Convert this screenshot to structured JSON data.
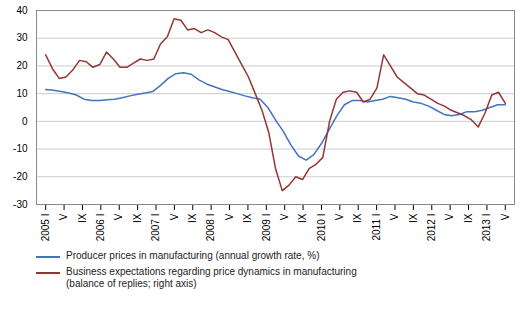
{
  "chart_data": {
    "type": "line",
    "xlim": [
      -0.5,
      25.5
    ],
    "xticks": [
      {
        "value": 0,
        "label": "2005 I"
      },
      {
        "value": 1,
        "label": "V"
      },
      {
        "value": 2,
        "label": "IX"
      },
      {
        "value": 3,
        "label": "2006 I"
      },
      {
        "value": 4,
        "label": "V"
      },
      {
        "value": 5,
        "label": "IX"
      },
      {
        "value": 6,
        "label": "2007 I"
      },
      {
        "value": 7,
        "label": "V"
      },
      {
        "value": 8,
        "label": "IX"
      },
      {
        "value": 9,
        "label": "2008 I"
      },
      {
        "value": 10,
        "label": "V"
      },
      {
        "value": 11,
        "label": "IX"
      },
      {
        "value": 12,
        "label": "2009 I"
      },
      {
        "value": 13,
        "label": "V"
      },
      {
        "value": 14,
        "label": "IX"
      },
      {
        "value": 15,
        "label": "2010 I"
      },
      {
        "value": 16,
        "label": "V"
      },
      {
        "value": 17,
        "label": "IX"
      },
      {
        "value": 18,
        "label": "2011 I"
      },
      {
        "value": 19,
        "label": "V"
      },
      {
        "value": 20,
        "label": "IX"
      },
      {
        "value": 21,
        "label": "2012 I"
      },
      {
        "value": 22,
        "label": "V"
      },
      {
        "value": 23,
        "label": "IX"
      },
      {
        "value": 24,
        "label": "2013 I"
      },
      {
        "value": 25,
        "label": "V"
      }
    ],
    "ylim": [
      -30,
      40
    ],
    "yticks": [
      -30,
      -20,
      -10,
      0,
      10,
      20,
      30,
      40
    ],
    "grid": true,
    "legend": "bottom",
    "series": [
      {
        "name": "Producer prices in manufacturing  (annual growth rate, %)",
        "color": "#4472C4",
        "x": [
          0,
          0.416667,
          0.833333,
          1.25,
          1.666667,
          2.083333,
          2.5,
          2.916667,
          3.333333,
          3.75,
          4.166667,
          4.583333,
          5,
          5.416667,
          5.833333,
          6.25,
          6.666667,
          7.083333,
          7.5,
          7.916667,
          8.333333,
          8.75,
          9.166667,
          9.583333,
          10,
          10.416667,
          10.833333,
          11.25,
          11.666667,
          12.083333,
          12.5,
          12.916667,
          13.333333,
          13.75,
          14.166667,
          14.583333,
          15,
          15.416667,
          15.833333,
          16.25,
          16.666667,
          17.083333,
          17.5,
          17.916667,
          18.333333,
          18.75,
          19.166667,
          19.583333,
          20,
          20.416667,
          20.833333,
          21.25,
          21.666667,
          22.083333,
          22.5,
          22.916667,
          23.333333,
          23.75,
          24.166667,
          24.583333,
          25
        ],
        "values": [
          11.5,
          11.2,
          10.8,
          10.2,
          9.5,
          8.0,
          7.5,
          7.5,
          7.8,
          8.0,
          8.5,
          9.2,
          9.8,
          10.2,
          10.8,
          13.0,
          15.5,
          17.2,
          17.5,
          17.0,
          15.0,
          13.5,
          12.5,
          11.5,
          10.8,
          10.0,
          9.2,
          8.5,
          8.0,
          5.0,
          0.5,
          -3.5,
          -8.5,
          -12.5,
          -14.0,
          -12.0,
          -8.0,
          -3.0,
          2.0,
          6.0,
          7.5,
          7.5,
          7.0,
          7.5,
          8.0,
          9.0,
          8.5,
          8.0,
          7.0,
          6.5,
          5.5,
          4.0,
          2.5,
          2.0,
          2.5,
          3.5,
          3.5,
          4.0,
          5.0,
          6.0,
          6.0
        ]
      },
      {
        "name": "Business expectations regarding price dynamics in manufacturing\n(balance of replies; right axis)",
        "color": "#943634",
        "x": [
          0,
          0.367647,
          0.735294,
          1.102941,
          1.470588,
          1.838235,
          2.205882,
          2.573529,
          2.941176,
          3.308824,
          3.676471,
          4.044118,
          4.411765,
          4.779412,
          5.147059,
          5.514706,
          5.882353,
          6.25,
          6.617647,
          6.985294,
          7.352941,
          7.720588,
          8.088235,
          8.455882,
          8.823529,
          9.191176,
          9.558824,
          9.926471,
          10.294118,
          10.661765,
          11.029412,
          11.397059,
          11.764706,
          12.132353,
          12.5,
          12.867647,
          13.235294,
          13.602941,
          13.970588,
          14.338235,
          14.705882,
          15.073529,
          15.441176,
          15.808824,
          16.176471,
          16.544118,
          16.911765,
          17.279412,
          17.647059,
          18.014706,
          18.382353,
          18.75,
          19.117647,
          19.485294,
          19.852941,
          20.220588,
          20.588235,
          20.955882,
          21.323529,
          21.691176,
          22.058824,
          22.426471,
          22.794118,
          23.161765,
          23.529412,
          23.897059,
          24.264706,
          24.632353,
          25
        ],
        "values": [
          24.0,
          19.0,
          15.5,
          16.0,
          18.5,
          22.0,
          21.5,
          19.5,
          20.5,
          25.0,
          22.5,
          19.5,
          19.5,
          21.0,
          22.5,
          22.0,
          22.5,
          28.0,
          30.5,
          37.0,
          36.5,
          33.0,
          33.5,
          32.0,
          33.0,
          32.0,
          30.5,
          29.5,
          25.0,
          20.5,
          16.0,
          10.0,
          4.0,
          -4.0,
          -17.0,
          -25.0,
          -23.0,
          -20.0,
          -21.0,
          -17.0,
          -15.5,
          -13.0,
          0.0,
          8.0,
          10.5,
          11.0,
          10.5,
          7.0,
          8.0,
          12.0,
          24.0,
          20.0,
          16.0,
          14.0,
          12.0,
          10.0,
          9.5,
          8.0,
          6.5,
          5.5,
          4.0,
          3.0,
          2.0,
          0.5,
          -2.0,
          3.0,
          9.5,
          10.5,
          6.5
        ]
      }
    ]
  }
}
